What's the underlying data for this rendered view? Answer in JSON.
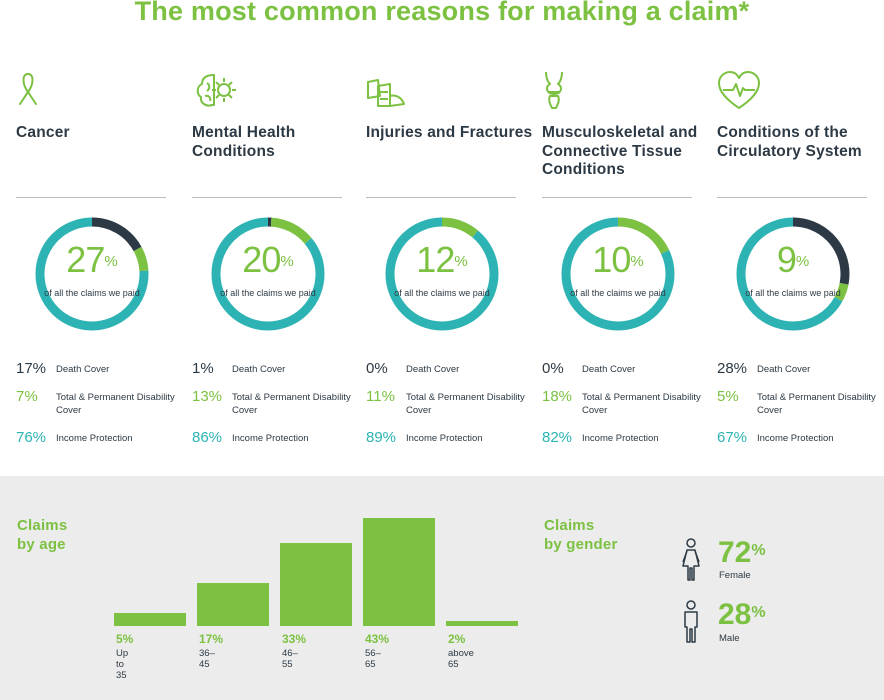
{
  "title": "The most common reasons for making a claim*",
  "colors": {
    "green": "#7cc142",
    "teal": "#2db3b3",
    "navy": "#2d3a45"
  },
  "categories": [
    {
      "icon": "ribbon-icon",
      "name": "Cancer",
      "pct": "27",
      "pct_unit": "%",
      "subtitle": "of all the claims we paid",
      "death_value": "17%",
      "death_label": "Death Cover",
      "tpd_value": "7%",
      "tpd_label": "Total & Permanent Disability Cover",
      "ip_value": "76%",
      "ip_label": "Income Protection",
      "share": {
        "death": 17,
        "tpd": 7,
        "ip": 76
      }
    },
    {
      "icon": "brain-gear-icon",
      "name": "Mental Health Conditions",
      "pct": "20",
      "pct_unit": "%",
      "subtitle": "of all the claims we paid",
      "death_value": "1%",
      "death_label": "Death Cover",
      "tpd_value": "13%",
      "tpd_label": "Total & Permanent Disability Cover",
      "ip_value": "86%",
      "ip_label": "Income Protection",
      "share": {
        "death": 1,
        "tpd": 13,
        "ip": 86
      }
    },
    {
      "icon": "arm-cast-icon",
      "name": "Injuries and Fractures",
      "pct": "12",
      "pct_unit": "%",
      "subtitle": "of all the claims we paid",
      "death_value": "0%",
      "death_label": "Death Cover",
      "tpd_value": "11%",
      "tpd_label": "Total & Permanent Disability Cover",
      "ip_value": "89%",
      "ip_label": "Income Protection",
      "share": {
        "death": 0,
        "tpd": 11,
        "ip": 89
      }
    },
    {
      "icon": "knee-joint-icon",
      "name": "Musculoskeletal and Connective Tissue Conditions",
      "pct": "10",
      "pct_unit": "%",
      "subtitle": "of all the claims we paid",
      "death_value": "0%",
      "death_label": "Death Cover",
      "tpd_value": "18%",
      "tpd_label": "Total & Permanent Disability Cover",
      "ip_value": "82%",
      "ip_label": "Income Protection",
      "share": {
        "death": 0,
        "tpd": 18,
        "ip": 82
      }
    },
    {
      "icon": "heart-pulse-icon",
      "name": "Conditions of the Circulatory System",
      "pct": "9",
      "pct_unit": "%",
      "subtitle": "of all the claims we paid",
      "death_value": "28%",
      "death_label": "Death Cover",
      "tpd_value": "5%",
      "tpd_label": "Total & Permanent Disability Cover",
      "ip_value": "67%",
      "ip_label": "Income Protection",
      "share": {
        "death": 28,
        "tpd": 5,
        "ip": 67
      }
    }
  ],
  "age": {
    "heading_line1": "Claims",
    "heading_line2": "by age",
    "chart_data": {
      "type": "bar",
      "categories": [
        "Up to 35",
        "36–45",
        "46–55",
        "56–65",
        "above 65"
      ],
      "values": [
        5,
        17,
        33,
        43,
        2
      ],
      "value_labels": [
        "5%",
        "17%",
        "33%",
        "43%",
        "2%"
      ]
    }
  },
  "gender": {
    "heading_line1": "Claims",
    "heading_line2": "by gender",
    "female": {
      "icon": "female-person-icon",
      "value": "72",
      "unit": "%",
      "label": "Female"
    },
    "male": {
      "icon": "male-person-icon",
      "value": "28",
      "unit": "%",
      "label": "Male"
    }
  }
}
